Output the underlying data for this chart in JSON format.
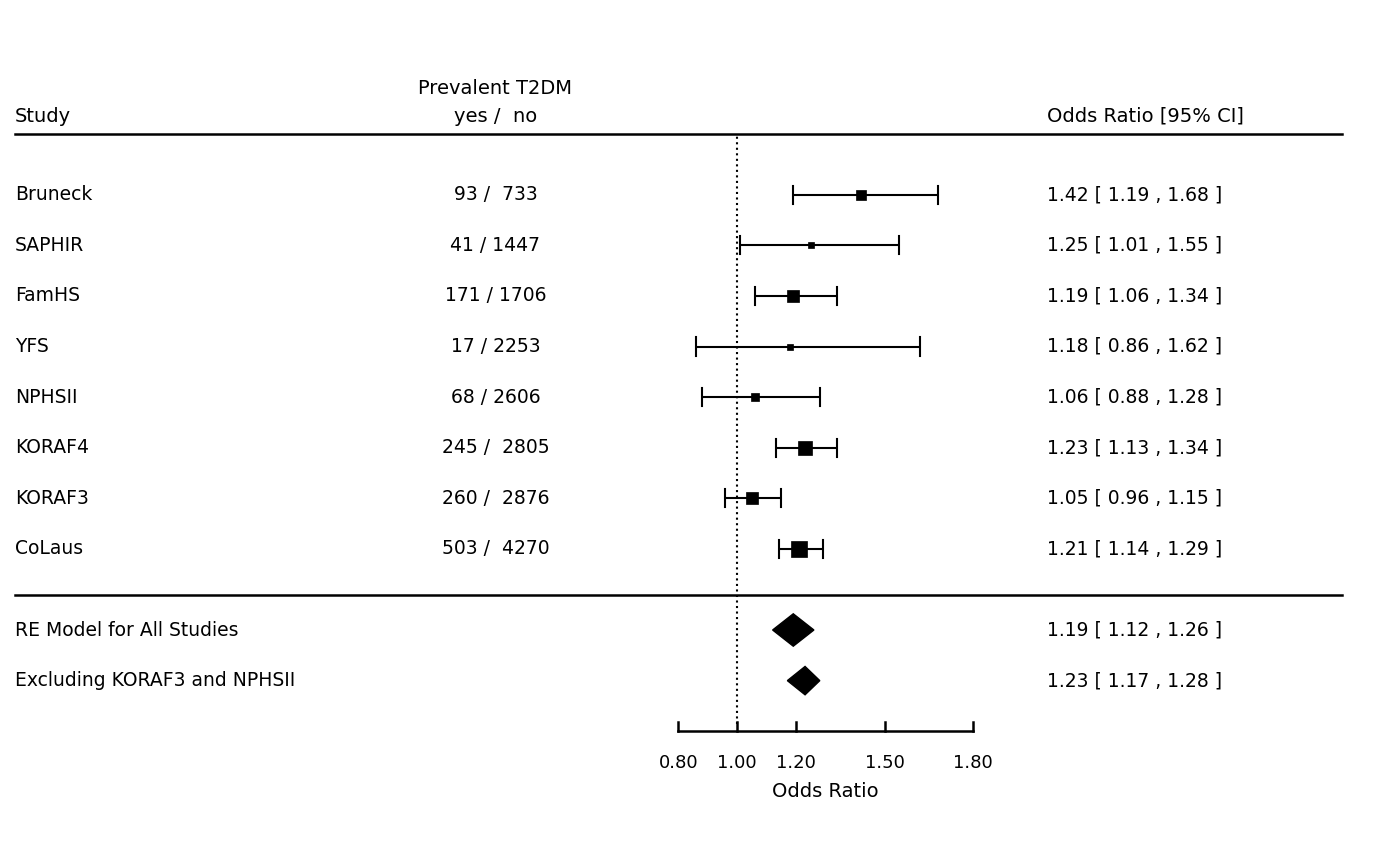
{
  "studies": [
    "Bruneck",
    "SAPHIR",
    "FamHS",
    "YFS",
    "NPHSII",
    "KORAF4",
    "KORAF3",
    "CoLaus"
  ],
  "yes_no": [
    "93 /  733",
    "41 / 1447",
    "171 / 1706",
    "17 / 2253",
    "68 / 2606",
    "245 /  2805",
    "260 /  2876",
    "503 /  4270"
  ],
  "or": [
    1.42,
    1.25,
    1.19,
    1.18,
    1.06,
    1.23,
    1.05,
    1.21
  ],
  "ci_low": [
    1.19,
    1.01,
    1.06,
    0.86,
    0.88,
    1.13,
    0.96,
    1.14
  ],
  "ci_high": [
    1.68,
    1.55,
    1.34,
    1.62,
    1.28,
    1.34,
    1.15,
    1.29
  ],
  "ci_labels": [
    "1.42 [ 1.19 , 1.68 ]",
    "1.25 [ 1.01 , 1.55 ]",
    "1.19 [ 1.06 , 1.34 ]",
    "1.18 [ 0.86 , 1.62 ]",
    "1.06 [ 0.88 , 1.28 ]",
    "1.23 [ 1.13 , 1.34 ]",
    "1.05 [ 0.96 , 1.15 ]",
    "1.21 [ 1.14 , 1.29 ]"
  ],
  "summary_labels": [
    "RE Model for All Studies",
    "Excluding KORAF3 and NPHSII"
  ],
  "summary_or": [
    1.19,
    1.23
  ],
  "summary_ci_low": [
    1.12,
    1.17
  ],
  "summary_ci_high": [
    1.26,
    1.28
  ],
  "summary_ci_labels": [
    "1.19 [ 1.12 , 1.26 ]",
    "1.23 [ 1.17 , 1.28 ]"
  ],
  "xticks": [
    0.8,
    1.0,
    1.2,
    1.5,
    1.8
  ],
  "xtick_labels": [
    "0.80",
    "1.00",
    "1.20",
    "1.50",
    "1.80"
  ],
  "xlabel": "Odds Ratio",
  "col1_header": "Study",
  "col2_header_line1": "Prevalent T2DM",
  "col2_header_line2": "yes /  no",
  "col3_header": "Odds Ratio [95% CI]",
  "ref_line": 1.0,
  "background_color": "#ffffff",
  "text_color": "#000000",
  "marker_color": "#000000",
  "diamond_color": "#000000",
  "square_sizes": [
    7,
    5,
    8,
    4,
    6,
    10,
    9,
    12
  ]
}
